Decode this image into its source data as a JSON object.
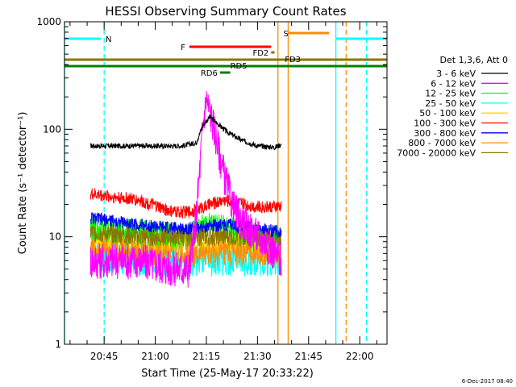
{
  "chart_data": {
    "type": "line",
    "title": "HESSI Observing Summary Count Rates",
    "xlabel": "Start Time (25-May-17 20:33:22)",
    "ylabel": "Count Rate (s⁻¹ detector⁻¹)",
    "yscale": "log",
    "xlim": [
      "20:33:22",
      "22:08:00"
    ],
    "ylim": [
      1,
      1000
    ],
    "x_tick_labels": [
      "20:45",
      "21:00",
      "21:15",
      "21:30",
      "21:45",
      "22:00"
    ],
    "y_tick_labels": [
      "1",
      "10",
      "100",
      "1000"
    ],
    "footer_date": "6-Dec-2017 08:40",
    "legend": {
      "placement": "right",
      "title": "Det 1,3,6, Att 0",
      "entries": [
        "3 - 6 keV",
        "6 - 12 keV",
        "12 - 25 keV",
        "25 - 50 keV",
        "50 - 100 keV",
        "100 - 300 keV",
        "300 - 800 keV",
        "800 - 7000 keV",
        "7000 - 20000 keV"
      ]
    },
    "series": [
      {
        "name": "3 - 6 keV",
        "color": "#000000",
        "x": [
          "20:41",
          "20:55",
          "21:08",
          "21:12",
          "21:14",
          "21:16",
          "21:18",
          "21:21",
          "21:25",
          "21:30",
          "21:35",
          "21:37"
        ],
        "y": [
          70,
          70,
          70,
          75,
          110,
          130,
          115,
          95,
          80,
          70,
          68,
          72
        ]
      },
      {
        "name": "6 - 12 keV",
        "color": "#ff00ff",
        "x": [
          "20:41",
          "20:55",
          "21:05",
          "21:10",
          "21:12",
          "21:14",
          "21:15",
          "21:17",
          "21:20",
          "21:23",
          "21:27",
          "21:32",
          "21:37"
        ],
        "y": [
          6,
          6,
          5,
          5,
          15,
          110,
          195,
          110,
          40,
          18,
          12,
          9,
          6
        ]
      },
      {
        "name": "12 - 25 keV",
        "color": "#00ff00",
        "x": [
          "20:41",
          "20:55",
          "21:10",
          "21:15",
          "21:20",
          "21:30",
          "21:37"
        ],
        "y": [
          12,
          11,
          10,
          13,
          12,
          10,
          10
        ]
      },
      {
        "name": "25 - 50 keV",
        "color": "#00ffff",
        "x": [
          "20:41",
          "20:55",
          "21:10",
          "21:20",
          "21:30",
          "21:37"
        ],
        "y": [
          7,
          6,
          6,
          6,
          6,
          6
        ]
      },
      {
        "name": "50 - 100 keV",
        "color": "#ffd700",
        "x": [
          "20:41",
          "20:55",
          "21:10",
          "21:20",
          "21:30",
          "21:37"
        ],
        "y": [
          10,
          9,
          9,
          9,
          9,
          9
        ]
      },
      {
        "name": "100 - 300 keV",
        "color": "#ff0000",
        "x": [
          "20:41",
          "20:55",
          "21:05",
          "21:10",
          "21:20",
          "21:30",
          "21:37"
        ],
        "y": [
          25,
          22,
          17,
          17,
          22,
          19,
          19
        ]
      },
      {
        "name": "300 - 800 keV",
        "color": "#0000ff",
        "x": [
          "20:41",
          "20:55",
          "21:05",
          "21:10",
          "21:20",
          "21:30",
          "21:37"
        ],
        "y": [
          15,
          13,
          12,
          12,
          13,
          12,
          11
        ]
      },
      {
        "name": "800 - 7000 keV",
        "color": "#ff8c00",
        "x": [
          "20:41",
          "20:55",
          "21:10",
          "21:20",
          "21:30",
          "21:37"
        ],
        "y": [
          8,
          7,
          7,
          7,
          7,
          7
        ]
      },
      {
        "name": "7000 - 20000 keV",
        "color": "#8b7500",
        "x": [
          "20:41",
          "20:55",
          "21:10",
          "21:20",
          "21:30",
          "21:37"
        ],
        "y": [
          11,
          10,
          10,
          10,
          10,
          10
        ]
      }
    ],
    "flag_bars": [
      {
        "label": "N",
        "color": "#00ffff",
        "segments": [
          [
            "20:33:22",
            "20:44"
          ],
          [
            "21:53",
            "22:08"
          ]
        ]
      },
      {
        "label": "S",
        "color": "#ff8c00",
        "segments": [
          [
            "21:39",
            "21:51"
          ]
        ]
      },
      {
        "label": "F",
        "color": "#ff0000",
        "segments": [
          [
            "21:10",
            "21:34"
          ]
        ]
      },
      {
        "label": "FD2",
        "color": "#8b7500",
        "segments": [
          [
            "21:34",
            "21:35"
          ]
        ]
      },
      {
        "label": "FD3",
        "color": "#8b7500",
        "segments": [
          [
            "20:33:22",
            "22:08"
          ]
        ]
      },
      {
        "label": "RD6",
        "color": "#008000",
        "segments": [
          [
            "21:19",
            "21:22"
          ]
        ]
      },
      {
        "label": "RD5",
        "color": "#008000",
        "segments": [
          [
            "20:33:22",
            "22:08"
          ]
        ]
      }
    ],
    "vertical_markers": [
      {
        "x": "20:33:22",
        "color": "#00ffff",
        "style": "solid"
      },
      {
        "x": "20:45",
        "color": "#00ffff",
        "style": "dashed"
      },
      {
        "x": "21:36",
        "color": "#ff8c00",
        "style": "solid"
      },
      {
        "x": "21:39",
        "color": "#ff8c00",
        "style": "solid"
      },
      {
        "x": "21:53",
        "color": "#00ffff",
        "style": "solid"
      },
      {
        "x": "21:56",
        "color": "#ff8c00",
        "style": "dashed"
      },
      {
        "x": "22:02",
        "color": "#00ffff",
        "style": "dashed"
      }
    ]
  }
}
